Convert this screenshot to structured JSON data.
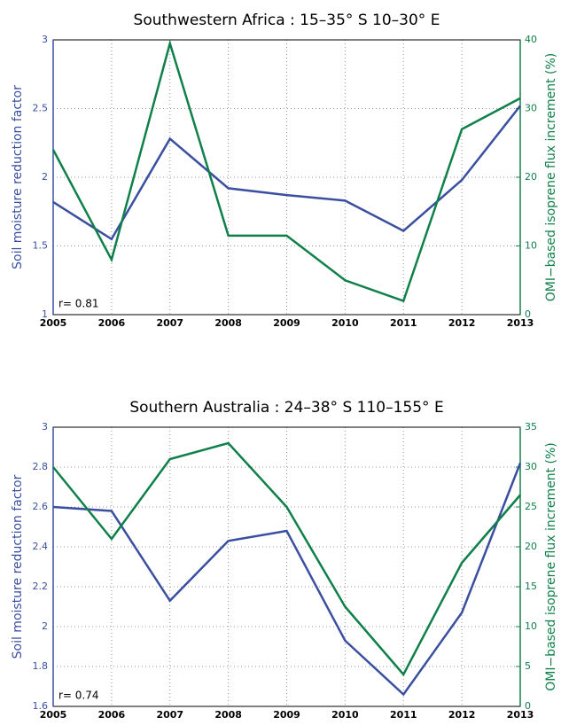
{
  "chart_data": [
    {
      "type": "line",
      "title": "Southwestern Africa :  15–35° S  10–30° E",
      "x": [
        2005,
        2006,
        2007,
        2008,
        2009,
        2010,
        2011,
        2012,
        2013
      ],
      "xlim": [
        2005,
        2013
      ],
      "xticks": [
        2005,
        2006,
        2007,
        2008,
        2009,
        2010,
        2011,
        2012,
        2013
      ],
      "ylabel": "Soil moisture reduction factor",
      "y2label": "OMI−based isoprene flux increment (%)",
      "ylim": [
        1,
        3
      ],
      "yticks": [
        1,
        1.5,
        2,
        2.5,
        3
      ],
      "y2lim": [
        0,
        40
      ],
      "y2ticks": [
        0,
        10,
        20,
        30,
        40
      ],
      "grid": true,
      "annotation": "r= 0.81",
      "series": [
        {
          "color": "#3a4fa0",
          "values": [
            1.82,
            1.55,
            2.28,
            1.92,
            1.87,
            1.83,
            1.61,
            1.98,
            2.52
          ]
        },
        {
          "color": "#10804a",
          "axis": "y2",
          "values": [
            24,
            8,
            39.5,
            11.5,
            11.5,
            5,
            2,
            27,
            31.5
          ]
        }
      ]
    },
    {
      "type": "line",
      "title": "Southern Australia :  24–38° S  110–155° E",
      "x": [
        2005,
        2006,
        2007,
        2008,
        2009,
        2010,
        2011,
        2012,
        2013
      ],
      "xlim": [
        2005,
        2013
      ],
      "xticks": [
        2005,
        2006,
        2007,
        2008,
        2009,
        2010,
        2011,
        2012,
        2013
      ],
      "ylabel": "Soil moisture reduction factor",
      "y2label": "OMI−based isoprene flux increment (%)",
      "ylim": [
        1.6,
        3
      ],
      "yticks": [
        1.6,
        1.8,
        2,
        2.2,
        2.4,
        2.6,
        2.8,
        3
      ],
      "y2lim": [
        0,
        35
      ],
      "y2ticks": [
        0,
        5,
        10,
        15,
        20,
        25,
        30,
        35
      ],
      "grid": true,
      "annotation": "r= 0.74",
      "series": [
        {
          "color": "#3a4fa0",
          "values": [
            2.6,
            2.58,
            2.13,
            2.43,
            2.48,
            1.93,
            1.66,
            2.07,
            2.82
          ]
        },
        {
          "color": "#10804a",
          "axis": "y2",
          "values": [
            30,
            21,
            31,
            33,
            25,
            12.5,
            4,
            18,
            26.5
          ]
        }
      ]
    }
  ]
}
